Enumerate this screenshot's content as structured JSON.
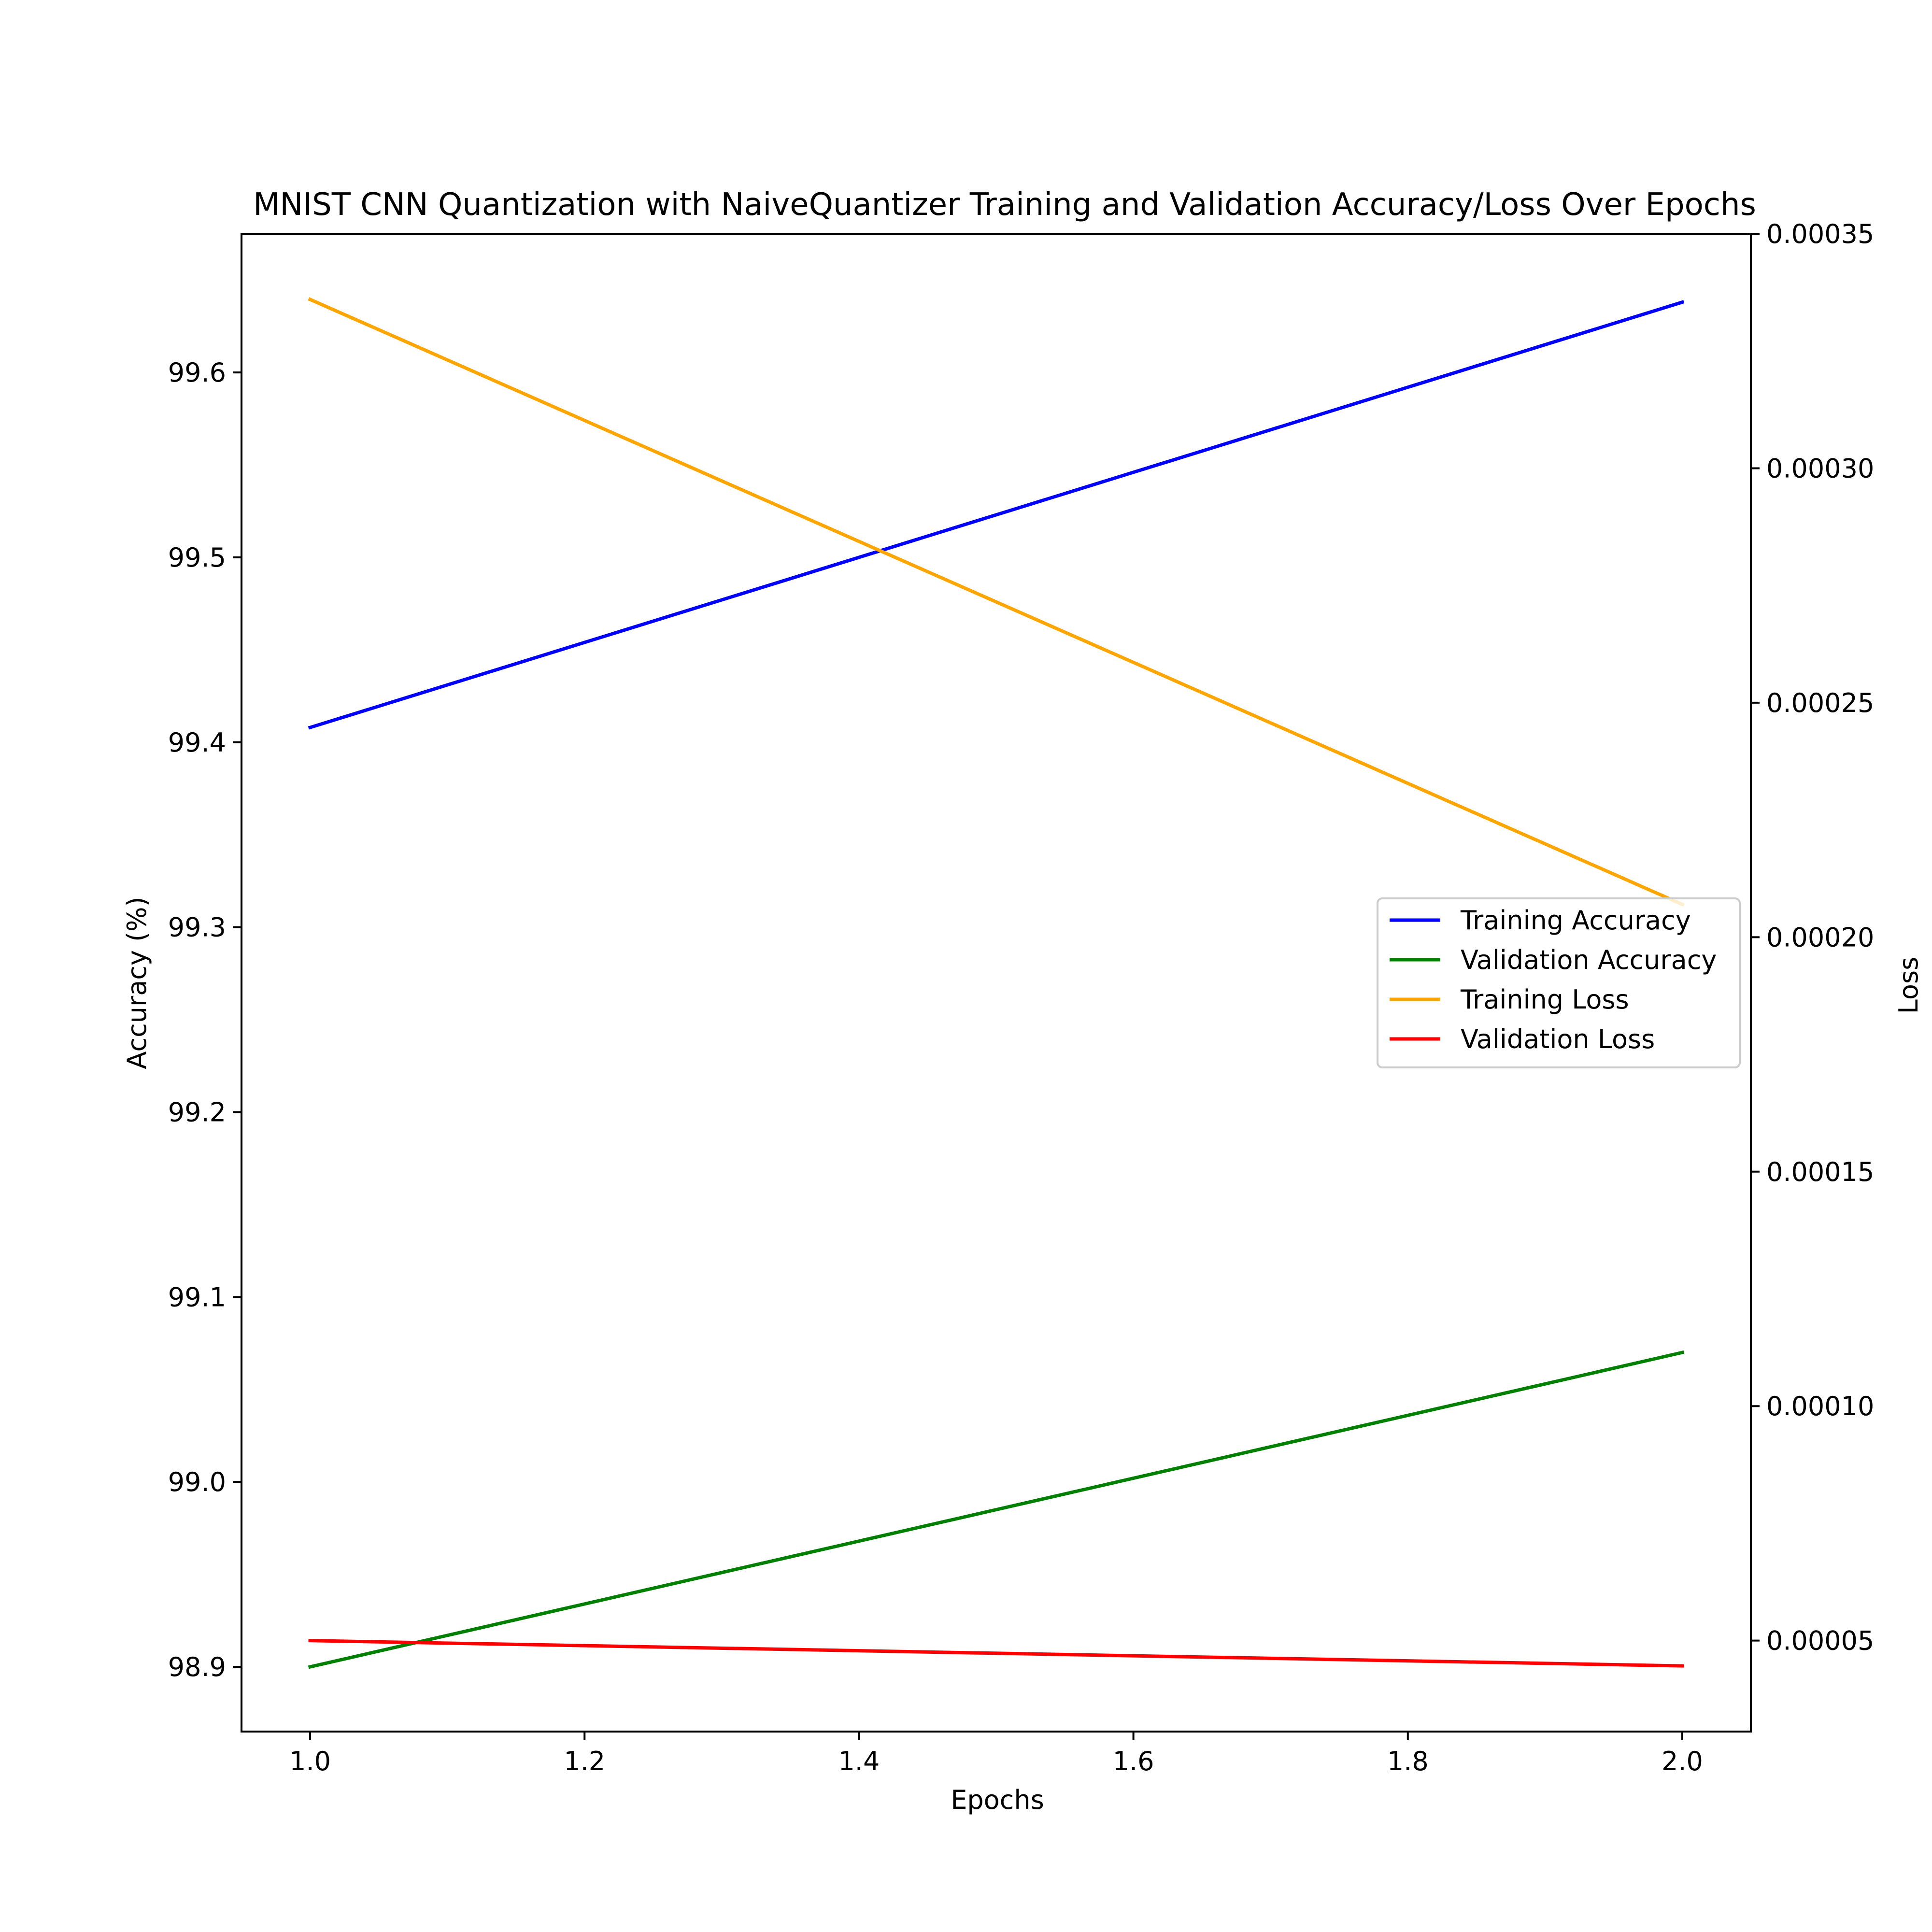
{
  "chart_data": {
    "type": "line",
    "title": "MNIST CNN Quantization with NaiveQuantizer Training and Validation Accuracy/Loss Over Epochs",
    "xlabel": "Epochs",
    "ylabel_left": "Accuracy (%)",
    "ylabel_right": "Loss",
    "xlim": [
      0.95,
      2.05
    ],
    "ylim_left": [
      98.865,
      99.675
    ],
    "ylim_right": [
      3.06e-05,
      0.00035
    ],
    "x_ticks": [
      1.0,
      1.2,
      1.4,
      1.6,
      1.8,
      2.0
    ],
    "x_tick_labels": [
      "1.0",
      "1.2",
      "1.4",
      "1.6",
      "1.8",
      "2.0"
    ],
    "y_left_ticks": [
      98.9,
      99.0,
      99.1,
      99.2,
      99.3,
      99.4,
      99.5,
      99.6
    ],
    "y_left_tick_labels": [
      "98.9",
      "99.0",
      "99.1",
      "99.2",
      "99.3",
      "99.4",
      "99.5",
      "99.6"
    ],
    "y_right_ticks": [
      5e-05,
      0.0001,
      0.00015,
      0.0002,
      0.00025,
      0.0003,
      0.00035
    ],
    "y_right_tick_labels": [
      "0.00005",
      "0.00010",
      "0.00015",
      "0.00020",
      "0.00025",
      "0.00030",
      "0.00035"
    ],
    "grid": false,
    "legend_position": "center-right",
    "x": [
      1.0,
      2.0
    ],
    "series": [
      {
        "name": "Training Accuracy",
        "axis": "left",
        "color": "#0000ff",
        "values": [
          99.408,
          99.638
        ]
      },
      {
        "name": "Validation Accuracy",
        "axis": "left",
        "color": "#008000",
        "values": [
          98.9,
          99.07
        ]
      },
      {
        "name": "Training Loss",
        "axis": "right",
        "color": "#ffa500",
        "values": [
          0.000336,
          0.000207
        ]
      },
      {
        "name": "Validation Loss",
        "axis": "right",
        "color": "#ff0000",
        "values": [
          5e-05,
          4.46e-05
        ]
      }
    ]
  }
}
